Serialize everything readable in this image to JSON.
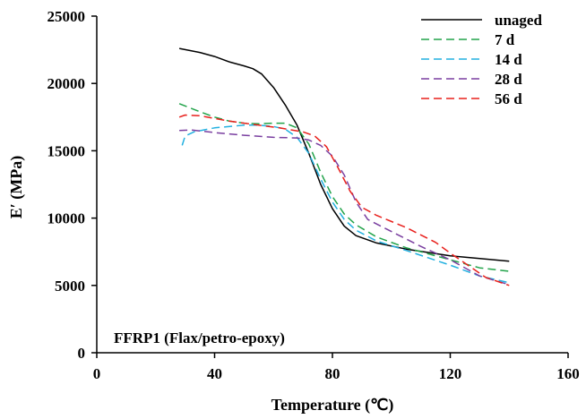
{
  "chart_data": {
    "type": "line",
    "title": "",
    "annotation": "FFRP1 (Flax/petro-epoxy)",
    "xlabel": "Temperature (℃)",
    "ylabel": "E′ (MPa)",
    "xlim": [
      0,
      160
    ],
    "ylim": [
      0,
      25000
    ],
    "xticks": [
      0,
      40,
      80,
      120,
      160
    ],
    "yticks": [
      0,
      5000,
      10000,
      15000,
      20000,
      25000
    ],
    "grid": false,
    "legend_position": "top-right",
    "series": [
      {
        "name": "unaged",
        "color": "#000000",
        "dash": "solid",
        "points": [
          [
            28,
            22600
          ],
          [
            35,
            22300
          ],
          [
            40,
            22000
          ],
          [
            45,
            21600
          ],
          [
            50,
            21300
          ],
          [
            53,
            21100
          ],
          [
            56,
            20700
          ],
          [
            60,
            19700
          ],
          [
            64,
            18400
          ],
          [
            68,
            16900
          ],
          [
            72,
            14800
          ],
          [
            76,
            12500
          ],
          [
            80,
            10700
          ],
          [
            84,
            9400
          ],
          [
            88,
            8700
          ],
          [
            95,
            8150
          ],
          [
            105,
            7700
          ],
          [
            120,
            7200
          ],
          [
            130,
            7000
          ],
          [
            140,
            6800
          ]
        ]
      },
      {
        "name": "7 d",
        "color": "#22a34a",
        "dash": "dashed",
        "points": [
          [
            28,
            18500
          ],
          [
            35,
            17900
          ],
          [
            40,
            17500
          ],
          [
            45,
            17200
          ],
          [
            50,
            17050
          ],
          [
            55,
            17000
          ],
          [
            60,
            17050
          ],
          [
            64,
            17050
          ],
          [
            68,
            16700
          ],
          [
            72,
            15500
          ],
          [
            76,
            13400
          ],
          [
            80,
            11600
          ],
          [
            84,
            10300
          ],
          [
            88,
            9500
          ],
          [
            95,
            8600
          ],
          [
            105,
            7800
          ],
          [
            120,
            6900
          ],
          [
            130,
            6300
          ],
          [
            140,
            6050
          ]
        ]
      },
      {
        "name": "14 d",
        "color": "#22b0e0",
        "dash": "dashed",
        "points": [
          [
            29,
            15400
          ],
          [
            30,
            16100
          ],
          [
            33,
            16400
          ],
          [
            40,
            16700
          ],
          [
            50,
            16900
          ],
          [
            55,
            16900
          ],
          [
            60,
            16800
          ],
          [
            64,
            16600
          ],
          [
            68,
            16000
          ],
          [
            72,
            14800
          ],
          [
            76,
            12900
          ],
          [
            80,
            11200
          ],
          [
            84,
            9900
          ],
          [
            88,
            9100
          ],
          [
            95,
            8300
          ],
          [
            105,
            7600
          ],
          [
            120,
            6500
          ],
          [
            130,
            5700
          ],
          [
            140,
            5200
          ]
        ]
      },
      {
        "name": "28 d",
        "color": "#7a3fa0",
        "dash": "dashed",
        "points": [
          [
            28,
            16500
          ],
          [
            32,
            16550
          ],
          [
            40,
            16350
          ],
          [
            50,
            16150
          ],
          [
            60,
            16000
          ],
          [
            68,
            15950
          ],
          [
            72,
            15800
          ],
          [
            76,
            15400
          ],
          [
            80,
            14600
          ],
          [
            84,
            13200
          ],
          [
            88,
            11200
          ],
          [
            92,
            9900
          ],
          [
            100,
            9000
          ],
          [
            110,
            7900
          ],
          [
            120,
            6900
          ],
          [
            130,
            5700
          ],
          [
            140,
            5050
          ]
        ]
      },
      {
        "name": "56 d",
        "color": "#e8201c",
        "dash": "dashed",
        "points": [
          [
            28,
            17500
          ],
          [
            30,
            17650
          ],
          [
            35,
            17600
          ],
          [
            45,
            17200
          ],
          [
            55,
            16900
          ],
          [
            62,
            16700
          ],
          [
            70,
            16400
          ],
          [
            74,
            16100
          ],
          [
            78,
            15300
          ],
          [
            82,
            13700
          ],
          [
            86,
            12000
          ],
          [
            90,
            10800
          ],
          [
            95,
            10200
          ],
          [
            105,
            9300
          ],
          [
            115,
            8200
          ],
          [
            120,
            7400
          ],
          [
            126,
            6500
          ],
          [
            132,
            5600
          ],
          [
            140,
            5000
          ]
        ]
      }
    ]
  }
}
